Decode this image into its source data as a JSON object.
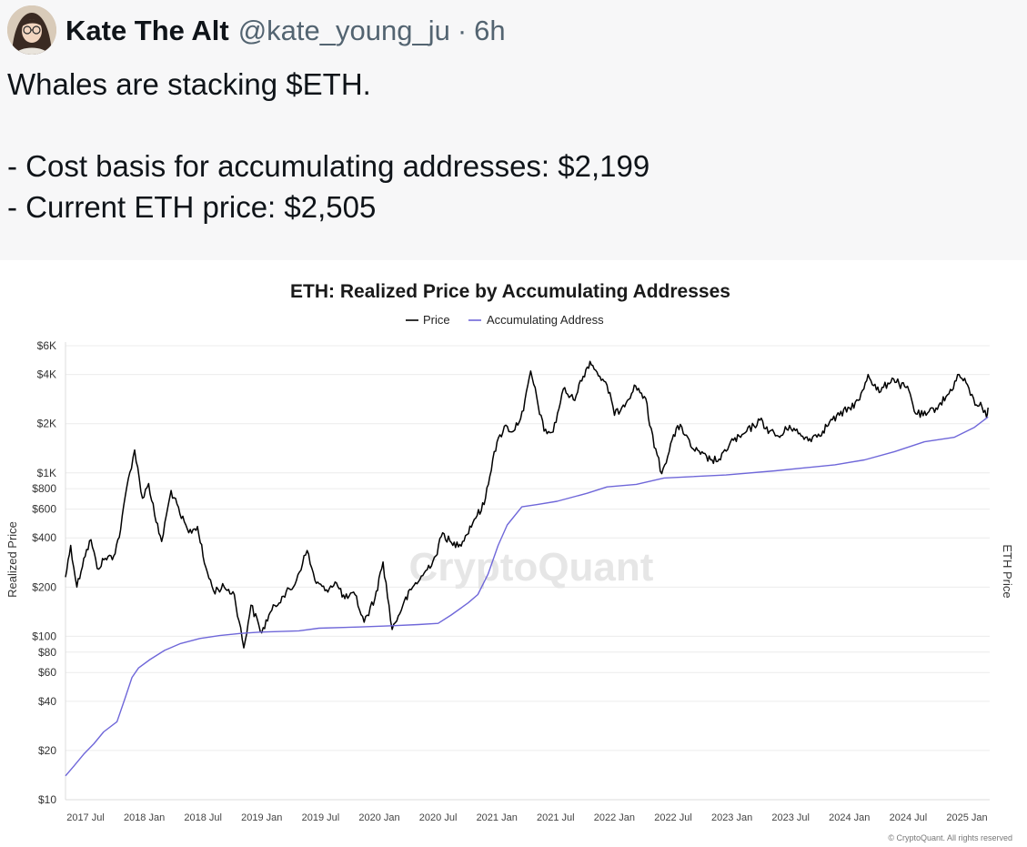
{
  "tweet": {
    "author_name": "Kate The Alt",
    "handle": "@kate_young_ju",
    "separator": "·",
    "time": "6h",
    "lines": [
      "Whales are stacking $ETH.",
      "",
      "- Cost basis for accumulating addresses: $2,199",
      "- Current ETH price: $2,505"
    ]
  },
  "chart_data": {
    "type": "line",
    "title": "ETH: Realized Price by Accumulating Addresses",
    "ylabel": "Realized Price",
    "ylabel_right": "ETH Price",
    "y_scale": "log",
    "ylim": [
      10,
      6000
    ],
    "y_ticks": [
      {
        "value": 10,
        "label": "$10"
      },
      {
        "value": 20,
        "label": "$20"
      },
      {
        "value": 40,
        "label": "$40"
      },
      {
        "value": 60,
        "label": "$60"
      },
      {
        "value": 80,
        "label": "$80"
      },
      {
        "value": 100,
        "label": "$100"
      },
      {
        "value": 200,
        "label": "$200"
      },
      {
        "value": 400,
        "label": "$400"
      },
      {
        "value": 600,
        "label": "$600"
      },
      {
        "value": 800,
        "label": "$800"
      },
      {
        "value": 1000,
        "label": "$1K"
      },
      {
        "value": 2000,
        "label": "$2K"
      },
      {
        "value": 4000,
        "label": "$4K"
      },
      {
        "value": 6000,
        "label": "$6K"
      }
    ],
    "x_ticks": [
      "2017 Jul",
      "2018 Jan",
      "2018 Jul",
      "2019 Jan",
      "2019 Jul",
      "2020 Jan",
      "2020 Jul",
      "2021 Jan",
      "2021 Jul",
      "2022 Jan",
      "2022 Jul",
      "2023 Jan",
      "2023 Jul",
      "2024 Jan",
      "2024 Jul",
      "2025 Jan"
    ],
    "xlim": [
      "2017-06-15",
      "2025-03-20"
    ],
    "legend_position": "top-center",
    "watermark": "CryptoQuant",
    "footer": "© CryptoQuant. All rights reserved",
    "series": [
      {
        "name": "Price",
        "color": "#000000",
        "points": [
          [
            "2017-06-15",
            230
          ],
          [
            "2017-07-01",
            360
          ],
          [
            "2017-07-20",
            200
          ],
          [
            "2017-08-10",
            300
          ],
          [
            "2017-09-01",
            390
          ],
          [
            "2017-09-20",
            260
          ],
          [
            "2017-10-15",
            300
          ],
          [
            "2017-11-10",
            310
          ],
          [
            "2017-12-01",
            450
          ],
          [
            "2017-12-20",
            820
          ],
          [
            "2018-01-13",
            1380
          ],
          [
            "2018-02-06",
            700
          ],
          [
            "2018-02-25",
            860
          ],
          [
            "2018-03-20",
            500
          ],
          [
            "2018-04-06",
            380
          ],
          [
            "2018-05-05",
            780
          ],
          [
            "2018-06-01",
            560
          ],
          [
            "2018-06-28",
            430
          ],
          [
            "2018-07-25",
            470
          ],
          [
            "2018-08-15",
            280
          ],
          [
            "2018-09-12",
            190
          ],
          [
            "2018-10-15",
            200
          ],
          [
            "2018-11-15",
            180
          ],
          [
            "2018-12-14",
            85
          ],
          [
            "2019-01-05",
            155
          ],
          [
            "2019-02-07",
            105
          ],
          [
            "2019-03-01",
            135
          ],
          [
            "2019-04-10",
            175
          ],
          [
            "2019-05-15",
            200
          ],
          [
            "2019-06-26",
            335
          ],
          [
            "2019-07-20",
            220
          ],
          [
            "2019-08-20",
            190
          ],
          [
            "2019-09-20",
            215
          ],
          [
            "2019-10-20",
            170
          ],
          [
            "2019-11-20",
            180
          ],
          [
            "2019-12-18",
            122
          ],
          [
            "2020-01-20",
            170
          ],
          [
            "2020-02-14",
            285
          ],
          [
            "2020-03-13",
            110
          ],
          [
            "2020-04-15",
            155
          ],
          [
            "2020-05-15",
            200
          ],
          [
            "2020-06-15",
            235
          ],
          [
            "2020-07-25",
            310
          ],
          [
            "2020-08-15",
            430
          ],
          [
            "2020-09-15",
            360
          ],
          [
            "2020-10-15",
            380
          ],
          [
            "2020-11-20",
            520
          ],
          [
            "2020-12-20",
            640
          ],
          [
            "2021-01-20",
            1350
          ],
          [
            "2021-02-20",
            1930
          ],
          [
            "2021-03-20",
            1800
          ],
          [
            "2021-04-20",
            2400
          ],
          [
            "2021-05-12",
            4200
          ],
          [
            "2021-06-22",
            1800
          ],
          [
            "2021-07-20",
            1780
          ],
          [
            "2021-08-20",
            3250
          ],
          [
            "2021-09-20",
            2800
          ],
          [
            "2021-10-20",
            3900
          ],
          [
            "2021-11-10",
            4810
          ],
          [
            "2021-12-10",
            3900
          ],
          [
            "2022-01-10",
            3100
          ],
          [
            "2022-01-24",
            2250
          ],
          [
            "2022-02-20",
            2600
          ],
          [
            "2022-03-30",
            3400
          ],
          [
            "2022-04-30",
            2850
          ],
          [
            "2022-05-12",
            1950
          ],
          [
            "2022-06-18",
            990
          ],
          [
            "2022-07-20",
            1600
          ],
          [
            "2022-08-14",
            1980
          ],
          [
            "2022-09-15",
            1450
          ],
          [
            "2022-10-15",
            1300
          ],
          [
            "2022-11-15",
            1200
          ],
          [
            "2022-12-15",
            1200
          ],
          [
            "2023-01-15",
            1550
          ],
          [
            "2023-02-15",
            1650
          ],
          [
            "2023-04-15",
            2100
          ],
          [
            "2023-05-15",
            1800
          ],
          [
            "2023-06-15",
            1650
          ],
          [
            "2023-07-15",
            1950
          ],
          [
            "2023-08-20",
            1680
          ],
          [
            "2023-09-15",
            1620
          ],
          [
            "2023-10-25",
            1800
          ],
          [
            "2023-11-15",
            2050
          ],
          [
            "2023-12-15",
            2250
          ],
          [
            "2024-01-15",
            2500
          ],
          [
            "2024-02-15",
            2800
          ],
          [
            "2024-03-12",
            4000
          ],
          [
            "2024-04-15",
            3100
          ],
          [
            "2024-05-25",
            3800
          ],
          [
            "2024-06-15",
            3500
          ],
          [
            "2024-07-15",
            3200
          ],
          [
            "2024-08-05",
            2300
          ],
          [
            "2024-09-06",
            2250
          ],
          [
            "2024-10-15",
            2600
          ],
          [
            "2024-11-15",
            3050
          ],
          [
            "2024-12-16",
            4000
          ],
          [
            "2025-01-15",
            3300
          ],
          [
            "2025-02-03",
            2600
          ],
          [
            "2025-02-20",
            2700
          ],
          [
            "2025-03-10",
            2200
          ],
          [
            "2025-03-15",
            2505
          ]
        ]
      },
      {
        "name": "Accumulating Address",
        "color": "#6f67d9",
        "points": [
          [
            "2017-06-15",
            14
          ],
          [
            "2017-07-10",
            16
          ],
          [
            "2017-08-10",
            19
          ],
          [
            "2017-09-10",
            22
          ],
          [
            "2017-10-10",
            26
          ],
          [
            "2017-11-20",
            30
          ],
          [
            "2017-12-15",
            42
          ],
          [
            "2018-01-05",
            56
          ],
          [
            "2018-01-25",
            64
          ],
          [
            "2018-03-01",
            72
          ],
          [
            "2018-04-15",
            82
          ],
          [
            "2018-06-01",
            90
          ],
          [
            "2018-08-01",
            97
          ],
          [
            "2018-10-01",
            101
          ],
          [
            "2018-12-01",
            104
          ],
          [
            "2019-02-01",
            106
          ],
          [
            "2019-06-01",
            108
          ],
          [
            "2019-08-01",
            112
          ],
          [
            "2019-12-01",
            114
          ],
          [
            "2020-03-13",
            116
          ],
          [
            "2020-06-01",
            118
          ],
          [
            "2020-08-01",
            120
          ],
          [
            "2020-09-10",
            135
          ],
          [
            "2020-11-01",
            160
          ],
          [
            "2020-12-01",
            180
          ],
          [
            "2021-01-01",
            240
          ],
          [
            "2021-02-01",
            360
          ],
          [
            "2021-03-01",
            480
          ],
          [
            "2021-04-15",
            620
          ],
          [
            "2021-06-01",
            640
          ],
          [
            "2021-08-01",
            670
          ],
          [
            "2021-11-01",
            750
          ],
          [
            "2022-01-01",
            820
          ],
          [
            "2022-04-01",
            850
          ],
          [
            "2022-06-25",
            930
          ],
          [
            "2023-01-01",
            970
          ],
          [
            "2023-06-01",
            1030
          ],
          [
            "2023-12-01",
            1120
          ],
          [
            "2024-03-01",
            1200
          ],
          [
            "2024-06-01",
            1350
          ],
          [
            "2024-09-01",
            1550
          ],
          [
            "2024-12-01",
            1650
          ],
          [
            "2025-02-01",
            1900
          ],
          [
            "2025-03-15",
            2199
          ]
        ]
      }
    ]
  }
}
